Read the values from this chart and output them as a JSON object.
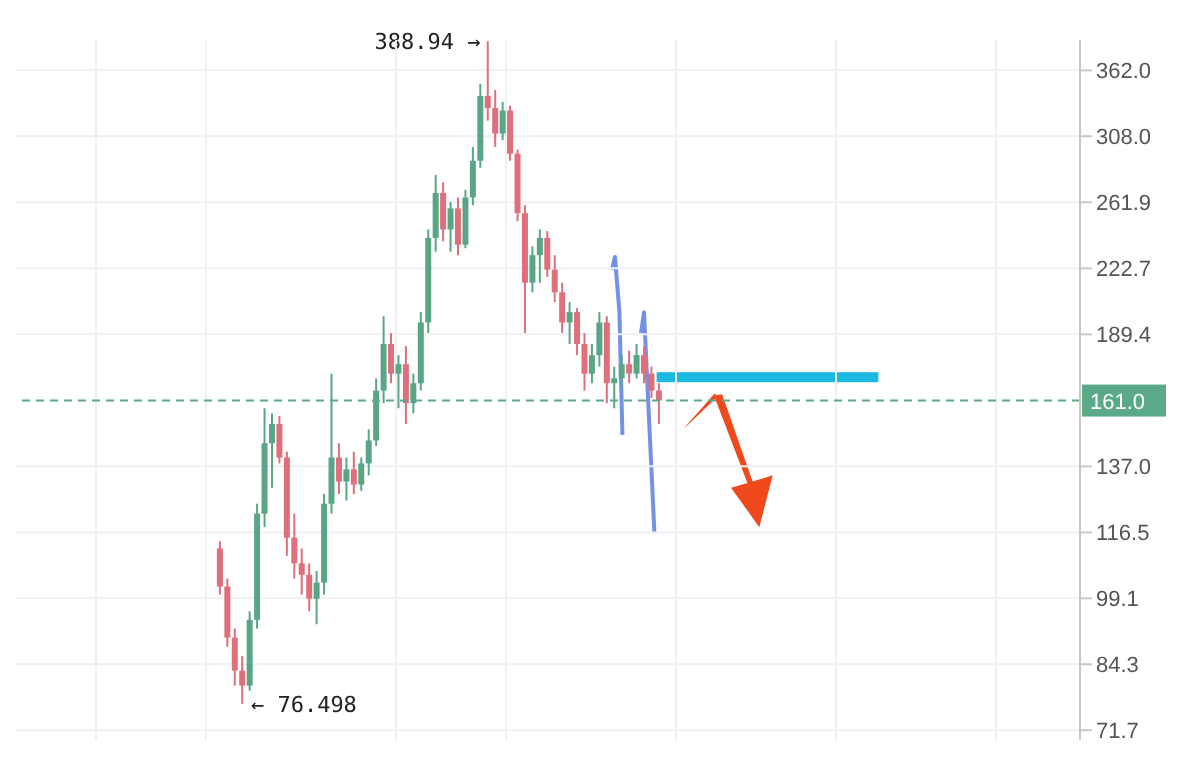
{
  "chart_data": {
    "type": "candlestick",
    "categories": [
      null,
      null,
      null,
      null,
      null,
      null,
      null,
      null,
      null,
      null,
      null,
      null,
      null,
      null,
      null,
      null,
      null,
      null,
      null,
      null,
      null,
      null,
      null,
      null,
      null,
      null,
      null,
      null,
      null,
      null,
      null,
      null,
      null,
      null,
      null,
      null,
      null,
      null,
      null,
      null,
      null,
      null,
      null,
      null,
      null,
      null,
      null,
      null,
      null,
      null,
      null,
      null,
      null,
      null,
      null,
      null,
      null,
      null,
      null,
      null,
      null,
      null,
      null,
      null,
      null,
      null,
      null,
      null,
      null,
      null,
      null,
      null,
      null,
      null,
      null,
      null,
      null,
      null,
      null,
      null,
      null,
      null,
      null,
      null,
      null,
      null,
      null,
      null,
      null,
      null,
      null,
      null,
      null,
      null,
      null,
      null,
      null,
      null,
      null,
      null,
      null,
      null,
      null,
      null,
      null,
      null,
      null,
      null,
      null,
      null,
      null,
      null,
      null,
      null,
      null,
      null,
      null,
      null,
      null,
      null,
      null,
      null,
      null,
      null,
      null,
      null,
      null,
      null,
      null,
      null,
      null,
      null,
      null,
      null,
      null,
      null,
      null,
      null,
      null,
      null,
      null,
      null,
      null
    ],
    "ohlc": [
      null,
      null,
      null,
      null,
      null,
      null,
      null,
      null,
      null,
      null,
      null,
      null,
      null,
      null,
      null,
      null,
      null,
      null,
      null,
      null,
      null,
      null,
      null,
      null,
      null,
      null,
      null,
      [
        112,
        114,
        100,
        102
      ],
      [
        102,
        104,
        88,
        90
      ],
      [
        90,
        92,
        80,
        83
      ],
      [
        83,
        86,
        76.498,
        80
      ],
      [
        80,
        96,
        79,
        94
      ],
      [
        94,
        125,
        92,
        122
      ],
      [
        122,
        158,
        118,
        145
      ],
      [
        145,
        156,
        130,
        152
      ],
      [
        152,
        155,
        138,
        140
      ],
      [
        140,
        142,
        110,
        115
      ],
      [
        115,
        122,
        104,
        108
      ],
      [
        108,
        112,
        100,
        105
      ],
      [
        105,
        108,
        96,
        99
      ],
      [
        99,
        106,
        93,
        103
      ],
      [
        103,
        128,
        100,
        125
      ],
      [
        125,
        172,
        122,
        140
      ],
      [
        140,
        145,
        128,
        132
      ],
      [
        132,
        140,
        126,
        136
      ],
      [
        136,
        142,
        128,
        131
      ],
      [
        131,
        140,
        129,
        138
      ],
      [
        138,
        150,
        134,
        146
      ],
      [
        146,
        170,
        144,
        165
      ],
      [
        165,
        198,
        160,
        185
      ],
      [
        185,
        190,
        168,
        172
      ],
      [
        172,
        180,
        158,
        176
      ],
      [
        176,
        184,
        152,
        160
      ],
      [
        160,
        172,
        156,
        168
      ],
      [
        168,
        200,
        165,
        195
      ],
      [
        195,
        245,
        190,
        240
      ],
      [
        240,
        280,
        232,
        268
      ],
      [
        268,
        275,
        238,
        245
      ],
      [
        245,
        262,
        232,
        258
      ],
      [
        258,
        265,
        230,
        236
      ],
      [
        236,
        270,
        234,
        265
      ],
      [
        265,
        300,
        260,
        290
      ],
      [
        290,
        350,
        285,
        340
      ],
      [
        340,
        388.94,
        320,
        330
      ],
      [
        330,
        345,
        300,
        310
      ],
      [
        310,
        335,
        305,
        328
      ],
      [
        328,
        332,
        290,
        295
      ],
      [
        295,
        298,
        250,
        255
      ],
      [
        255,
        260,
        190,
        215
      ],
      [
        215,
        235,
        210,
        230
      ],
      [
        230,
        245,
        215,
        240
      ],
      [
        240,
        244,
        218,
        222
      ],
      [
        222,
        230,
        205,
        210
      ],
      [
        210,
        215,
        190,
        195
      ],
      [
        195,
        205,
        185,
        200
      ],
      [
        200,
        202,
        180,
        185
      ],
      [
        185,
        190,
        165,
        172
      ],
      [
        172,
        185,
        168,
        180
      ],
      [
        180,
        200,
        175,
        195
      ],
      [
        195,
        198,
        160,
        168
      ],
      [
        168,
        175,
        158,
        170
      ],
      [
        170,
        180,
        166,
        176
      ],
      [
        176,
        182,
        168,
        172
      ],
      [
        172,
        185,
        170,
        180
      ],
      [
        180,
        184,
        168,
        172
      ],
      [
        172,
        175,
        162,
        165
      ],
      [
        165,
        168,
        152,
        161
      ],
      null,
      null,
      null,
      null,
      null,
      null,
      null,
      null,
      null,
      null,
      null,
      null,
      null,
      null,
      null,
      null,
      null,
      null,
      null,
      null,
      null,
      null,
      null,
      null,
      null,
      null,
      null,
      null,
      null,
      null,
      null,
      null,
      null,
      null,
      null,
      null,
      null,
      null,
      null,
      null,
      null,
      null,
      null,
      null,
      null,
      null,
      null,
      null,
      null,
      null,
      null,
      null,
      null,
      null,
      null,
      null
    ],
    "log": true,
    "ylim": [
      70,
      390
    ],
    "yticks": [
      {
        "value": 71.7,
        "label": "71.7"
      },
      {
        "value": 84.3,
        "label": "84.3"
      },
      {
        "value": 99.1,
        "label": "99.1"
      },
      {
        "value": 116.5,
        "label": "116.5"
      },
      {
        "value": 137.0,
        "label": "137.0"
      },
      {
        "value": 189.4,
        "label": "189.4"
      },
      {
        "value": 222.7,
        "label": "222.7"
      },
      {
        "value": 261.9,
        "label": "261.9"
      },
      {
        "value": 308.0,
        "label": "308.0"
      },
      {
        "value": 362.0,
        "label": "362.0"
      }
    ],
    "ref_lines": [
      {
        "axis": "y",
        "value": 161.0,
        "label": "161.0",
        "color": "#5aaa8a",
        "line_style": "dashed"
      }
    ],
    "annotations": [
      "388.94 →",
      "← 76.498"
    ],
    "grid": true,
    "tick_labels": "y"
  }
}
